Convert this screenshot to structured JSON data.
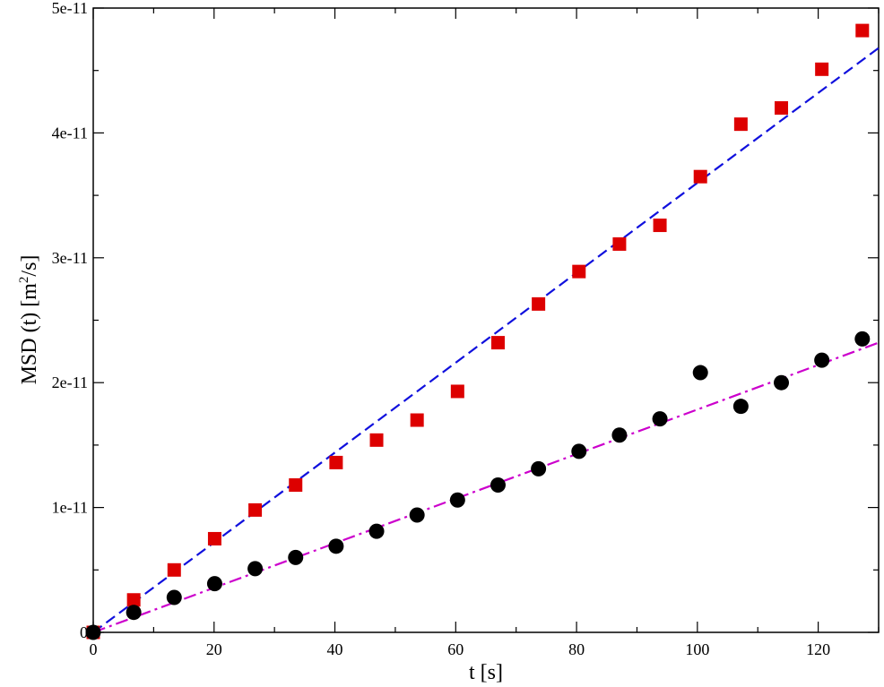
{
  "chart_data": {
    "type": "scatter",
    "title": "",
    "xlabel": "t [s]",
    "ylabel_parts": {
      "prefix": "MSD (t) [m",
      "superscript": "2",
      "suffix": "/s]"
    },
    "xlim": [
      0,
      130
    ],
    "ylim": [
      0,
      5e-11
    ],
    "x_ticks": [
      0,
      20,
      40,
      60,
      80,
      100,
      120
    ],
    "x_tick_labels": [
      "0",
      "20",
      "40",
      "60",
      "80",
      "100",
      "120"
    ],
    "y_ticks": [
      0,
      1e-11,
      2e-11,
      3e-11,
      4e-11,
      5e-11
    ],
    "y_tick_labels": [
      "0",
      "1e-11",
      "2e-11",
      "3e-11",
      "4e-11",
      "5e-11"
    ],
    "grid": false,
    "legend": "none",
    "series": [
      {
        "marker": "square",
        "color": "#dd0000",
        "points": [
          [
            0,
            0
          ],
          [
            6.7,
            2.6e-12
          ],
          [
            13.4,
            5e-12
          ],
          [
            20.1,
            7.5e-12
          ],
          [
            26.8,
            9.8e-12
          ],
          [
            33.5,
            1.18e-11
          ],
          [
            40.2,
            1.36e-11
          ],
          [
            46.9,
            1.54e-11
          ],
          [
            53.6,
            1.7e-11
          ],
          [
            60.3,
            1.93e-11
          ],
          [
            67.0,
            2.32e-11
          ],
          [
            73.7,
            2.63e-11
          ],
          [
            80.4,
            2.89e-11
          ],
          [
            87.1,
            3.11e-11
          ],
          [
            93.8,
            3.26e-11
          ],
          [
            100.5,
            3.65e-11
          ],
          [
            107.2,
            4.07e-11
          ],
          [
            113.9,
            4.2e-11
          ],
          [
            120.6,
            4.51e-11
          ],
          [
            127.3,
            4.82e-11
          ]
        ]
      },
      {
        "marker": "circle",
        "color": "#000000",
        "points": [
          [
            0,
            0
          ],
          [
            6.7,
            1.6e-12
          ],
          [
            13.4,
            2.8e-12
          ],
          [
            20.1,
            3.9e-12
          ],
          [
            26.8,
            5.1e-12
          ],
          [
            33.5,
            6e-12
          ],
          [
            40.2,
            6.9e-12
          ],
          [
            46.9,
            8.1e-12
          ],
          [
            53.6,
            9.4e-12
          ],
          [
            60.3,
            1.06e-11
          ],
          [
            67.0,
            1.18e-11
          ],
          [
            73.7,
            1.31e-11
          ],
          [
            80.4,
            1.45e-11
          ],
          [
            87.1,
            1.58e-11
          ],
          [
            93.8,
            1.71e-11
          ],
          [
            100.5,
            2.08e-11
          ],
          [
            107.2,
            1.81e-11
          ],
          [
            113.9,
            2e-11
          ],
          [
            120.6,
            2.18e-11
          ],
          [
            127.3,
            2.35e-11
          ]
        ]
      }
    ],
    "fit_lines": [
      {
        "style": "dashed",
        "color": "#1010dd",
        "from": [
          0,
          0
        ],
        "to": [
          130,
          4.68e-11
        ]
      },
      {
        "style": "dash-dot",
        "color": "#cc00cc",
        "from": [
          0,
          0
        ],
        "to": [
          130,
          2.32e-11
        ]
      }
    ]
  }
}
